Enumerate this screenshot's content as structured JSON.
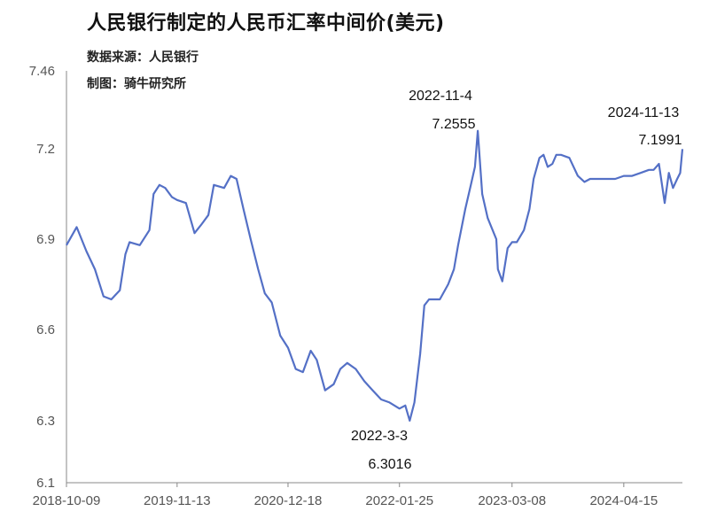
{
  "title": "人民银行制定的人民币汇率中间价(美元)",
  "source": "数据来源：人民银行",
  "credit": "制图：骑牛研究所",
  "chart_data": {
    "type": "line",
    "title": "人民银行制定的人民币汇率中间价(美元)",
    "xlabel": "",
    "ylabel": "",
    "ylim": [
      6.1,
      7.46
    ],
    "yticks": [
      6.1,
      6.3,
      6.6,
      6.9,
      7.2,
      7.46
    ],
    "ytick_labels": [
      "6.1",
      "6.3",
      "6.6",
      "6.9",
      "7.2",
      "7.46"
    ],
    "xlim": [
      "2018-10-09",
      "2024-11-13"
    ],
    "xticks": [
      "2018-10-09",
      "2019-11-13",
      "2020-12-18",
      "2022-01-25",
      "2023-03-08",
      "2024-04-15"
    ],
    "grid": false,
    "legend": "none",
    "color": "#5470c6",
    "series": [
      {
        "x": [
          "2018-10-09",
          "2018-11-15",
          "2018-12-20",
          "2019-01-20",
          "2019-02-20",
          "2019-03-20",
          "2019-04-20",
          "2019-05-10",
          "2019-05-25",
          "2019-07-01",
          "2019-08-05",
          "2019-08-20",
          "2019-09-10",
          "2019-10-01",
          "2019-10-25",
          "2019-11-13",
          "2019-12-15",
          "2020-01-15",
          "2020-02-10",
          "2020-03-05",
          "2020-03-25",
          "2020-05-01",
          "2020-05-25",
          "2020-06-15",
          "2020-07-10",
          "2020-08-05",
          "2020-09-01",
          "2020-09-25",
          "2020-10-20",
          "2020-11-20",
          "2020-12-18",
          "2021-01-15",
          "2021-02-10",
          "2021-03-10",
          "2021-04-01",
          "2021-05-01",
          "2021-06-01",
          "2021-06-25",
          "2021-07-20",
          "2021-08-20",
          "2021-09-20",
          "2021-10-20",
          "2021-11-20",
          "2021-12-20",
          "2022-01-25",
          "2022-02-15",
          "2022-03-03",
          "2022-03-20",
          "2022-04-10",
          "2022-04-25",
          "2022-05-12",
          "2022-05-25",
          "2022-06-20",
          "2022-07-20",
          "2022-08-10",
          "2022-08-25",
          "2022-09-20",
          "2022-10-10",
          "2022-10-25",
          "2022-11-04",
          "2022-11-20",
          "2022-12-10",
          "2023-01-10",
          "2023-01-16",
          "2023-02-01",
          "2023-02-20",
          "2023-03-08",
          "2023-03-25",
          "2023-04-20",
          "2023-05-10",
          "2023-05-25",
          "2023-06-15",
          "2023-06-30",
          "2023-07-15",
          "2023-08-01",
          "2023-08-15",
          "2023-09-01",
          "2023-10-01",
          "2023-11-01",
          "2023-11-25",
          "2023-12-15",
          "2024-01-15",
          "2024-02-15",
          "2024-03-15",
          "2024-04-15",
          "2024-05-15",
          "2024-06-15",
          "2024-07-15",
          "2024-08-01",
          "2024-08-20",
          "2024-09-10",
          "2024-09-25",
          "2024-10-10",
          "2024-10-25",
          "2024-11-05",
          "2024-11-13"
        ],
        "values": [
          6.88,
          6.94,
          6.86,
          6.8,
          6.71,
          6.7,
          6.73,
          6.85,
          6.89,
          6.88,
          6.93,
          7.05,
          7.08,
          7.07,
          7.04,
          7.03,
          7.02,
          6.92,
          6.95,
          6.98,
          7.08,
          7.07,
          7.11,
          7.1,
          7.0,
          6.9,
          6.8,
          6.72,
          6.69,
          6.58,
          6.54,
          6.47,
          6.46,
          6.53,
          6.5,
          6.4,
          6.42,
          6.47,
          6.49,
          6.47,
          6.43,
          6.4,
          6.37,
          6.36,
          6.34,
          6.35,
          6.3,
          6.36,
          6.52,
          6.68,
          6.7,
          6.7,
          6.7,
          6.75,
          6.8,
          6.88,
          7.0,
          7.08,
          7.14,
          7.26,
          7.05,
          6.97,
          6.9,
          6.8,
          6.76,
          6.87,
          6.89,
          6.89,
          6.93,
          7.0,
          7.1,
          7.17,
          7.18,
          7.14,
          7.15,
          7.18,
          7.18,
          7.17,
          7.11,
          7.09,
          7.1,
          7.1,
          7.1,
          7.1,
          7.11,
          7.11,
          7.12,
          7.13,
          7.13,
          7.15,
          7.02,
          7.12,
          7.07,
          7.1,
          7.12,
          7.1991
        ]
      }
    ],
    "annotations": [
      {
        "date": "2022-11-4",
        "value": "7.2555"
      },
      {
        "date": "2024-11-13",
        "value": "7.1991"
      },
      {
        "date": "2022-3-3",
        "value": "6.3016"
      }
    ]
  }
}
